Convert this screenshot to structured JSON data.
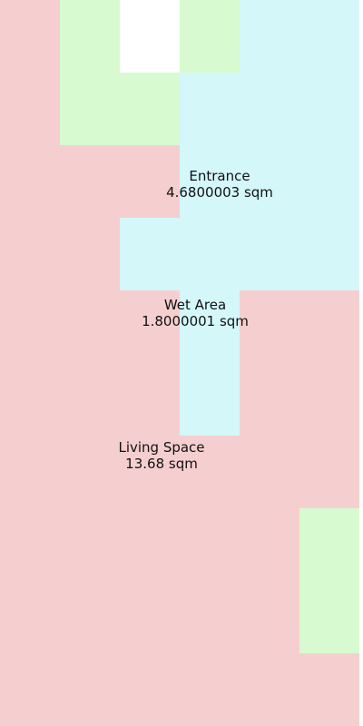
{
  "colors": {
    "living": "#f5cfcf",
    "wet": "#d4f7fa",
    "green": "#d7fad0",
    "white": "#ffffff"
  },
  "rooms": {
    "entrance": {
      "name": "Entrance",
      "area": "4.6800003 sqm"
    },
    "wet_area": {
      "name": "Wet Area",
      "area": "1.8000001 sqm"
    },
    "living_space": {
      "name": "Living Space",
      "area": "13.68 sqm"
    }
  }
}
